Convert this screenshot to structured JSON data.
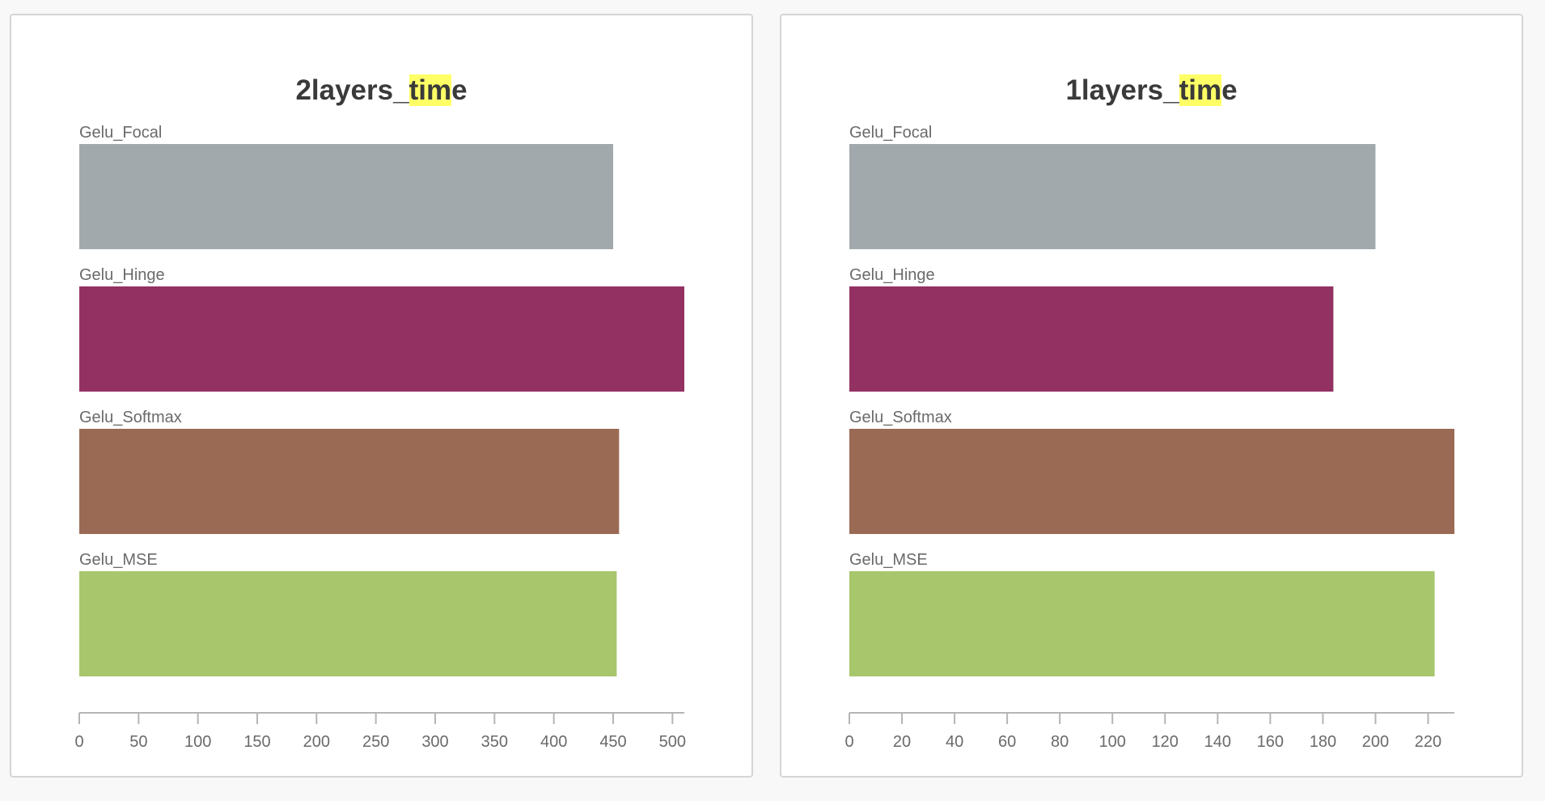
{
  "panels": [
    {
      "title_parts": [
        "2layers_",
        "tim",
        "e"
      ],
      "search_highlight": "tim"
    },
    {
      "title_parts": [
        "1layers_",
        "tim",
        "e"
      ],
      "search_highlight": "tim"
    }
  ],
  "chart_data": [
    {
      "type": "bar",
      "orientation": "horizontal",
      "title": "2layers_time",
      "categories": [
        "Gelu_Focal",
        "Gelu_Hinge",
        "Gelu_Softmax",
        "Gelu_MSE"
      ],
      "values": [
        450,
        510,
        455,
        453
      ],
      "colors": [
        "#a1a9ad",
        "#933262",
        "#9a6a54",
        "#a8c66c"
      ],
      "xlim": [
        0,
        510
      ],
      "xticks": [
        0,
        50,
        100,
        150,
        200,
        250,
        300,
        350,
        400,
        450,
        500
      ],
      "grid": false,
      "legend": "none"
    },
    {
      "type": "bar",
      "orientation": "horizontal",
      "title": "1layers_time",
      "categories": [
        "Gelu_Focal",
        "Gelu_Hinge",
        "Gelu_Softmax",
        "Gelu_MSE"
      ],
      "values": [
        200,
        184,
        230,
        222.5
      ],
      "colors": [
        "#a1a9ad",
        "#933262",
        "#9a6a54",
        "#a8c66c"
      ],
      "xlim": [
        0,
        230
      ],
      "xticks": [
        0,
        20,
        40,
        60,
        80,
        100,
        120,
        140,
        160,
        180,
        200,
        220
      ],
      "grid": false,
      "legend": "none"
    }
  ]
}
